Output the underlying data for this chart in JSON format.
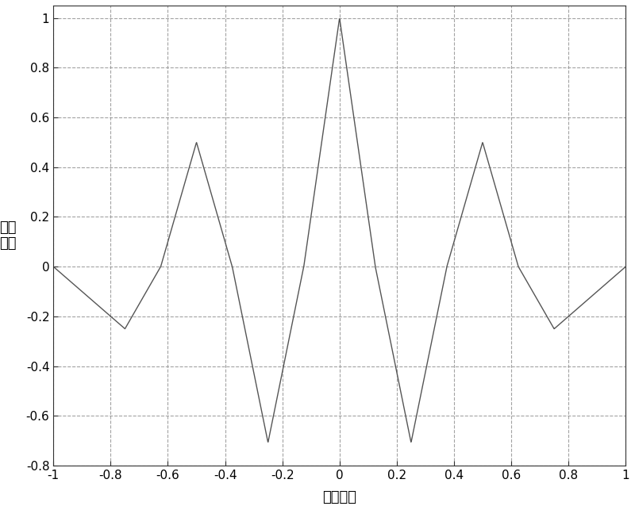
{
  "title": "",
  "xlabel": "码片偏移",
  "ylabel": "自相\n关值",
  "xlim": [
    -1,
    1
  ],
  "ylim": [
    -0.8,
    1.05
  ],
  "xticks": [
    -1,
    -0.8,
    -0.6,
    -0.4,
    -0.2,
    0,
    0.2,
    0.4,
    0.6,
    0.8,
    1
  ],
  "yticks": [
    -0.8,
    -0.6,
    -0.4,
    -0.2,
    0,
    0.2,
    0.4,
    0.6,
    0.8,
    1
  ],
  "grid_color": "#999999",
  "line_color": "#555555",
  "background_color": "#ffffff",
  "figsize": [
    8.0,
    6.43
  ],
  "dpi": 100,
  "breakpoints_tau": [
    -1,
    -0.75,
    -0.625,
    -0.5,
    -0.375,
    -0.25,
    -0.125,
    0,
    0.125,
    0.25,
    0.375,
    0.5,
    0.625,
    0.75,
    1
  ],
  "breakpoints_val": [
    0,
    -0.25,
    0,
    0.5,
    0,
    -0.7071,
    0,
    1,
    0,
    -0.7071,
    0,
    0.5,
    0,
    -0.25,
    0
  ]
}
